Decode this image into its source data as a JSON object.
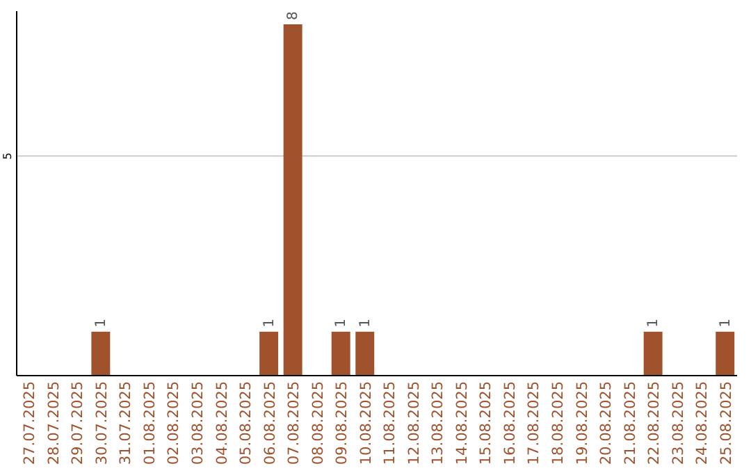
{
  "chart_data": {
    "type": "bar",
    "categories": [
      "27.07.2025",
      "28.07.2025",
      "29.07.2025",
      "30.07.2025",
      "31.07.2025",
      "01.08.2025",
      "02.08.2025",
      "03.08.2025",
      "04.08.2025",
      "05.08.2025",
      "06.08.2025",
      "07.08.2025",
      "08.08.2025",
      "09.08.2025",
      "10.08.2025",
      "11.08.2025",
      "12.08.2025",
      "13.08.2025",
      "14.08.2025",
      "15.08.2025",
      "16.08.2025",
      "17.08.2025",
      "18.08.2025",
      "19.08.2025",
      "20.08.2025",
      "21.08.2025",
      "22.08.2025",
      "23.08.2025",
      "24.08.2025",
      "25.08.2025"
    ],
    "values": [
      0,
      0,
      0,
      1,
      0,
      0,
      0,
      0,
      0,
      0,
      1,
      8,
      0,
      1,
      1,
      0,
      0,
      0,
      0,
      0,
      0,
      0,
      0,
      0,
      0,
      0,
      1,
      0,
      0,
      1
    ],
    "value_labels": [
      null,
      null,
      null,
      "1",
      null,
      null,
      null,
      null,
      null,
      null,
      "1",
      "8",
      null,
      "1",
      "1",
      null,
      null,
      null,
      null,
      null,
      null,
      null,
      null,
      null,
      null,
      null,
      "1",
      null,
      null,
      "1"
    ],
    "color": "#a0522d",
    "ylim": [
      0,
      8.3
    ],
    "yticks": [
      5
    ],
    "grid": "y"
  }
}
